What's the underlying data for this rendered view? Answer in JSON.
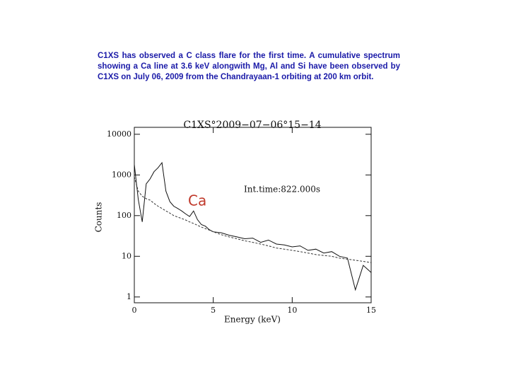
{
  "intro": "C1XS has observed a C class flare for the first time. A cumulative spectrum showing a Ca line at 3.6 keV alongwith Mg, Al and Si have been observed by C1XS on July 06, 2009 from the Chandrayaan-1 orbiting at 200 km orbit.",
  "chart_data": {
    "type": "line",
    "title": "C1XS°2009−07−06°15−14",
    "x_label": "Energy (keV)",
    "y_label": "Counts",
    "annotations": [
      {
        "text": "Int.time:822.000s",
        "color": "#111111"
      },
      {
        "text": "Ca",
        "color": "#c0392b"
      }
    ],
    "log_y": true,
    "xlim": [
      0,
      15
    ],
    "xticks": [
      0,
      5,
      10,
      15
    ],
    "ylim": [
      0.72,
      14800
    ],
    "yticks": [
      1,
      10,
      100,
      1000,
      10000
    ],
    "x": [
      0,
      0.25,
      0.5,
      0.75,
      1,
      1.25,
      1.5,
      1.75,
      2,
      2.25,
      2.5,
      2.75,
      3,
      3.25,
      3.5,
      3.75,
      4,
      4.25,
      4.5,
      4.75,
      5,
      5.5,
      6,
      6.5,
      7,
      7.5,
      8,
      8.5,
      9,
      9.5,
      10,
      10.5,
      11,
      11.5,
      12,
      12.5,
      13,
      13.5,
      14,
      14.5,
      15
    ],
    "series": [
      {
        "color": "#111111",
        "dash": false,
        "values": [
          1800,
          250,
          70,
          600,
          800,
          1200,
          1500,
          2000,
          400,
          220,
          170,
          150,
          130,
          110,
          95,
          130,
          80,
          60,
          55,
          45,
          40,
          38,
          33,
          30,
          27,
          28,
          22,
          25,
          20,
          19,
          17,
          18,
          14,
          15,
          12,
          13,
          10,
          9,
          1.5,
          6,
          4
        ]
      },
      {
        "color": "#333333",
        "dash": true,
        "values": [
          900,
          400,
          300,
          260,
          240,
          200,
          170,
          150,
          130,
          115,
          100,
          92,
          85,
          78,
          70,
          64,
          58,
          52,
          48,
          44,
          40,
          34,
          30,
          27,
          24,
          22,
          20,
          18,
          16,
          15,
          14,
          13,
          12,
          11,
          10.5,
          10,
          9,
          8.5,
          8,
          7.5,
          7
        ]
      }
    ]
  }
}
